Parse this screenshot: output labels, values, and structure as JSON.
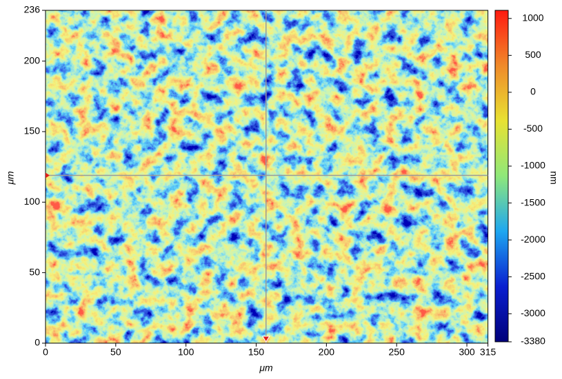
{
  "chart_data": {
    "type": "heatmap",
    "xlabel": "μm",
    "ylabel": "μm",
    "colorbar_label": "nm",
    "xlim": [
      0,
      315
    ],
    "xticks": [
      0,
      50,
      100,
      150,
      200,
      250,
      300,
      315
    ],
    "ylim": [
      0,
      236
    ],
    "yticks": [
      0,
      50,
      100,
      150,
      200,
      236
    ],
    "clim": [
      -3380,
      1110
    ],
    "cticks": [
      1000,
      500,
      0,
      -500,
      -1000,
      -1500,
      -2000,
      -2500,
      -3000,
      -3380
    ],
    "colormap": [
      "#00007a",
      "#0a1fd0",
      "#1ea7f0",
      "#8fe87a",
      "#e8e232",
      "#f08a2a",
      "#ff1a10"
    ],
    "crosshair": {
      "x": 157,
      "y": 119
    }
  }
}
